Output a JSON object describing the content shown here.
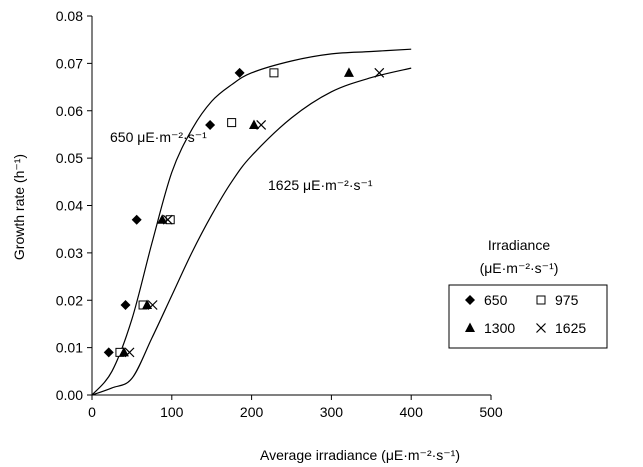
{
  "chart_data": {
    "type": "scatter",
    "title": "",
    "xlabel": "Average irradiance (μE·m⁻²·s⁻¹)",
    "ylabel": "Growth rate (h⁻¹)",
    "xlim": [
      0,
      500
    ],
    "ylim": [
      0,
      0.08
    ],
    "x_ticks": [
      "0",
      "100",
      "200",
      "300",
      "400",
      "500"
    ],
    "y_ticks": [
      "0.00",
      "0.01",
      "0.02",
      "0.03",
      "0.04",
      "0.05",
      "0.06",
      "0.07",
      "0.08"
    ],
    "grid": false,
    "legend": {
      "position": "right",
      "title_line1": "Irradiance",
      "title_line2": "(μE·m⁻²·s⁻¹)",
      "entries": [
        "650",
        "975",
        "1300",
        "1625"
      ]
    },
    "series": [
      {
        "name": "650",
        "marker": "diamond",
        "points": [
          [
            21,
            0.009
          ],
          [
            42,
            0.019
          ],
          [
            56,
            0.037
          ],
          [
            148,
            0.057
          ],
          [
            185,
            0.068
          ]
        ]
      },
      {
        "name": "975",
        "marker": "open-square",
        "points": [
          [
            35,
            0.009
          ],
          [
            64,
            0.019
          ],
          [
            98,
            0.037
          ],
          [
            175,
            0.0575
          ],
          [
            228,
            0.068
          ]
        ]
      },
      {
        "name": "1300",
        "marker": "triangle",
        "points": [
          [
            40,
            0.009
          ],
          [
            69,
            0.019
          ],
          [
            88,
            0.037
          ],
          [
            203,
            0.057
          ],
          [
            322,
            0.068
          ]
        ]
      },
      {
        "name": "1625",
        "marker": "x",
        "points": [
          [
            47,
            0.009
          ],
          [
            76,
            0.019
          ],
          [
            95,
            0.037
          ],
          [
            212,
            0.057
          ],
          [
            360,
            0.068
          ]
        ]
      }
    ],
    "fit_curves": [
      {
        "label": "650 μE·m⁻²·s⁻¹",
        "points": [
          [
            0,
            0.0
          ],
          [
            25,
            0.005
          ],
          [
            50,
            0.016
          ],
          [
            75,
            0.032
          ],
          [
            100,
            0.047
          ],
          [
            125,
            0.056
          ],
          [
            150,
            0.062
          ],
          [
            175,
            0.0655
          ],
          [
            200,
            0.068
          ],
          [
            250,
            0.0705
          ],
          [
            300,
            0.072
          ],
          [
            350,
            0.0725
          ],
          [
            400,
            0.073
          ]
        ]
      },
      {
        "label": "1625 μE·m⁻²·s⁻¹",
        "points": [
          [
            0,
            0.0
          ],
          [
            25,
            0.0015
          ],
          [
            50,
            0.0035
          ],
          [
            75,
            0.012
          ],
          [
            100,
            0.021
          ],
          [
            125,
            0.03
          ],
          [
            150,
            0.038
          ],
          [
            175,
            0.045
          ],
          [
            200,
            0.0505
          ],
          [
            250,
            0.0585
          ],
          [
            300,
            0.064
          ],
          [
            350,
            0.067
          ],
          [
            400,
            0.069
          ]
        ]
      }
    ],
    "colors": {
      "axis": "#000000",
      "marker": "#000000",
      "curve": "#000000",
      "background": "#ffffff"
    }
  }
}
